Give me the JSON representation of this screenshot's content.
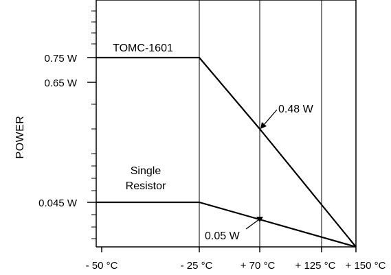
{
  "chart_data": {
    "type": "line",
    "title": "",
    "ylabel": "POWER",
    "xlabel": "",
    "x_ticks": [
      "- 50 °C",
      "- 25 °C",
      "+ 70 °C",
      "+ 125 °C",
      "+ 150 °C"
    ],
    "y_ticks": [
      {
        "label": "0.75 W",
        "value": 0.75
      },
      {
        "label": "0.65 W",
        "value": 0.65
      },
      {
        "label": "0.045 W",
        "value": 0.045
      }
    ],
    "series": [
      {
        "name": "TOMC-1601",
        "points": [
          {
            "x": "- 50 °C",
            "y": 0.75
          },
          {
            "x": "- 25 °C",
            "y": 0.75
          },
          {
            "x": "+ 70 °C",
            "y": 0.48
          },
          {
            "x": "+ 150 °C",
            "y": 0
          }
        ]
      },
      {
        "name": "Single Resistor",
        "points": [
          {
            "x": "- 50 °C",
            "y": 0.045
          },
          {
            "x": "- 25 °C",
            "y": 0.045
          },
          {
            "x": "+ 70 °C",
            "y": 0.05
          },
          {
            "x": "+ 150 °C",
            "y": 0
          }
        ]
      }
    ],
    "annotations": [
      "0.48 W",
      "0.05 W"
    ],
    "grid": "vertical",
    "legend": "inline labels",
    "line_color": "#000000"
  }
}
